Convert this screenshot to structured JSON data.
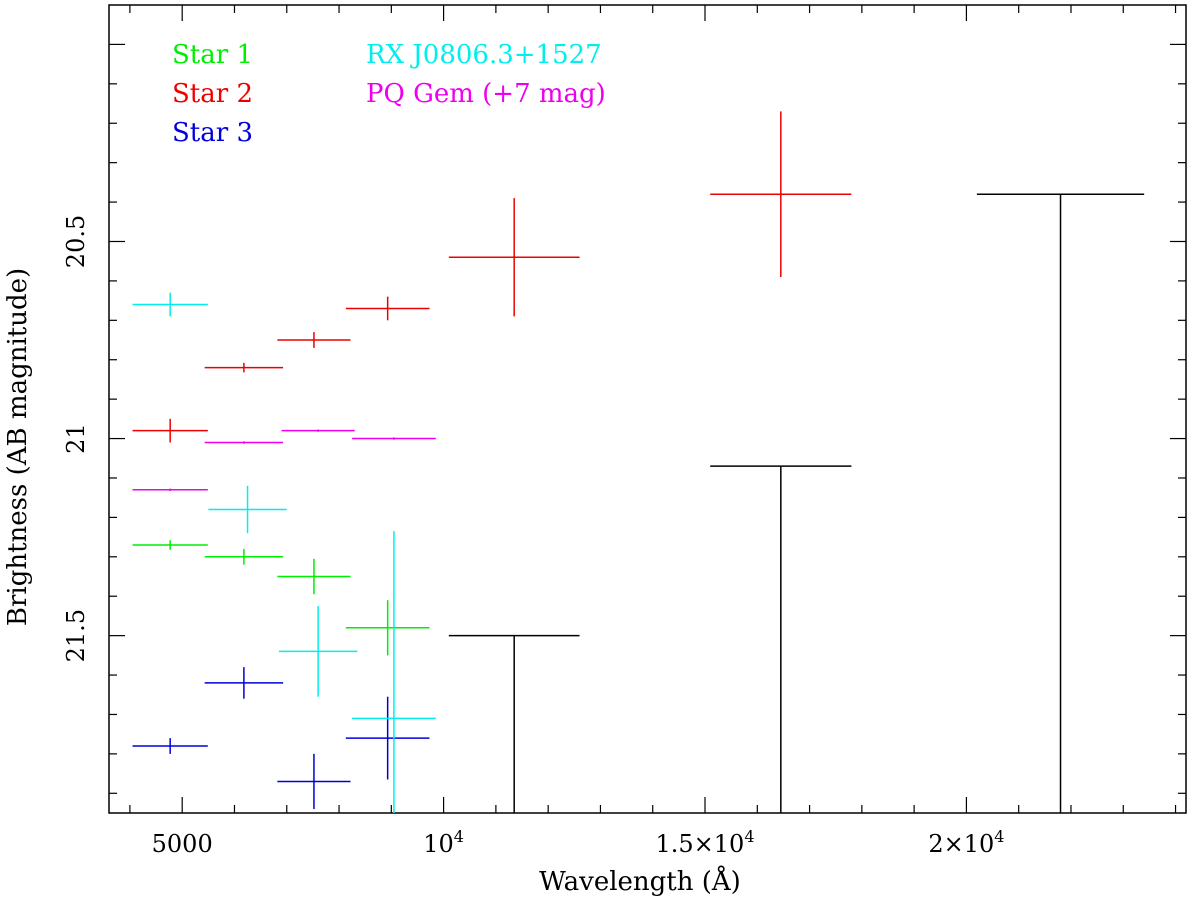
{
  "chart_data": {
    "type": "scatter",
    "xlabel": "Wavelength (Å)",
    "ylabel": "Brightness (AB magnitude)",
    "xlim": [
      3600,
      24200
    ],
    "ylim": [
      21.95,
      19.9
    ],
    "y_reversed": true,
    "grid": false,
    "legend_position": "top-left",
    "x_ticks": [
      {
        "value": 5000,
        "label": "5000",
        "sup": ""
      },
      {
        "value": 10000,
        "label": "10",
        "sup": "4"
      },
      {
        "value": 15000,
        "label": "1.5×10",
        "sup": "4"
      },
      {
        "value": 20000,
        "label": "2×10",
        "sup": "4"
      }
    ],
    "y_ticks": [
      {
        "value": 20.5,
        "label": "20.5"
      },
      {
        "value": 21,
        "label": "21"
      },
      {
        "value": 21.5,
        "label": "21.5"
      }
    ],
    "series": [
      {
        "name": "Star 1",
        "color": "#00ee00",
        "points": [
          {
            "x": 4770,
            "y": 21.27,
            "xerr": 720,
            "yerr": 0.012
          },
          {
            "x": 6180,
            "y": 21.3,
            "xerr": 750,
            "yerr": 0.02
          },
          {
            "x": 7520,
            "y": 21.35,
            "xerr": 700,
            "yerr": 0.045
          },
          {
            "x": 8930,
            "y": 21.48,
            "xerr": 800,
            "yerr": 0.07
          }
        ]
      },
      {
        "name": "Star 2",
        "color": "#ee0000",
        "points": [
          {
            "x": 4770,
            "y": 20.98,
            "xerr": 720,
            "yerr": 0.03
          },
          {
            "x": 6180,
            "y": 20.82,
            "xerr": 750,
            "yerr": 0.012
          },
          {
            "x": 7520,
            "y": 20.75,
            "xerr": 700,
            "yerr": 0.02
          },
          {
            "x": 8930,
            "y": 20.67,
            "xerr": 800,
            "yerr": 0.03
          },
          {
            "x": 11350,
            "y": 20.54,
            "xerr": 1250,
            "yerr": 0.15
          },
          {
            "x": 16450,
            "y": 20.38,
            "xerr": 1350,
            "yerr": 0.21
          }
        ]
      },
      {
        "name": "Star 3",
        "color": "#0000dd",
        "points": [
          {
            "x": 4770,
            "y": 21.78,
            "xerr": 720,
            "yerr": 0.02
          },
          {
            "x": 6180,
            "y": 21.62,
            "xerr": 750,
            "yerr": 0.04
          },
          {
            "x": 7520,
            "y": 21.87,
            "xerr": 700,
            "yerr": 0.07
          },
          {
            "x": 8930,
            "y": 21.76,
            "xerr": 800,
            "yerr": 0.105
          }
        ]
      },
      {
        "name": "RX J0806.3+1527",
        "color": "#00eeee",
        "points": [
          {
            "x": 4770,
            "y": 20.66,
            "xerr": 720,
            "yerr": 0.03
          },
          {
            "x": 6250,
            "y": 21.18,
            "xerr": 750,
            "yerr": 0.06
          },
          {
            "x": 7600,
            "y": 21.54,
            "xerr": 750,
            "yerr": 0.115
          },
          {
            "x": 9050,
            "y": 21.71,
            "xerr": 800,
            "yerr": 0.475
          }
        ]
      },
      {
        "name": "PQ Gem (+7 mag)",
        "color": "#ee00ee",
        "points": [
          {
            "x": 4770,
            "y": 21.13,
            "xerr": 720,
            "yerr": 0.003
          },
          {
            "x": 6180,
            "y": 21.01,
            "xerr": 750,
            "yerr": 0.003
          },
          {
            "x": 7600,
            "y": 20.98,
            "xerr": 700,
            "yerr": 0.003
          },
          {
            "x": 9050,
            "y": 21.0,
            "xerr": 800,
            "yerr": 0.003
          }
        ]
      },
      {
        "name": "",
        "color": "#000000",
        "upper_limits": [
          {
            "x": 11350,
            "y": 21.5,
            "xerr": 1250
          },
          {
            "x": 16450,
            "y": 21.07,
            "xerr": 1350
          },
          {
            "x": 21800,
            "y": 20.38,
            "xerr": 1600
          }
        ]
      }
    ]
  },
  "legend": [
    {
      "label": "Star 1",
      "color": "#00ee00",
      "col": 0,
      "row": 0
    },
    {
      "label": "Star 2",
      "color": "#ee0000",
      "col": 0,
      "row": 1
    },
    {
      "label": "Star 3",
      "color": "#0000dd",
      "col": 0,
      "row": 2
    },
    {
      "label": "RX J0806.3+1527",
      "color": "#00eeee",
      "col": 1,
      "row": 0
    },
    {
      "label": "PQ Gem (+7 mag)",
      "color": "#ee00ee",
      "col": 1,
      "row": 1
    }
  ]
}
